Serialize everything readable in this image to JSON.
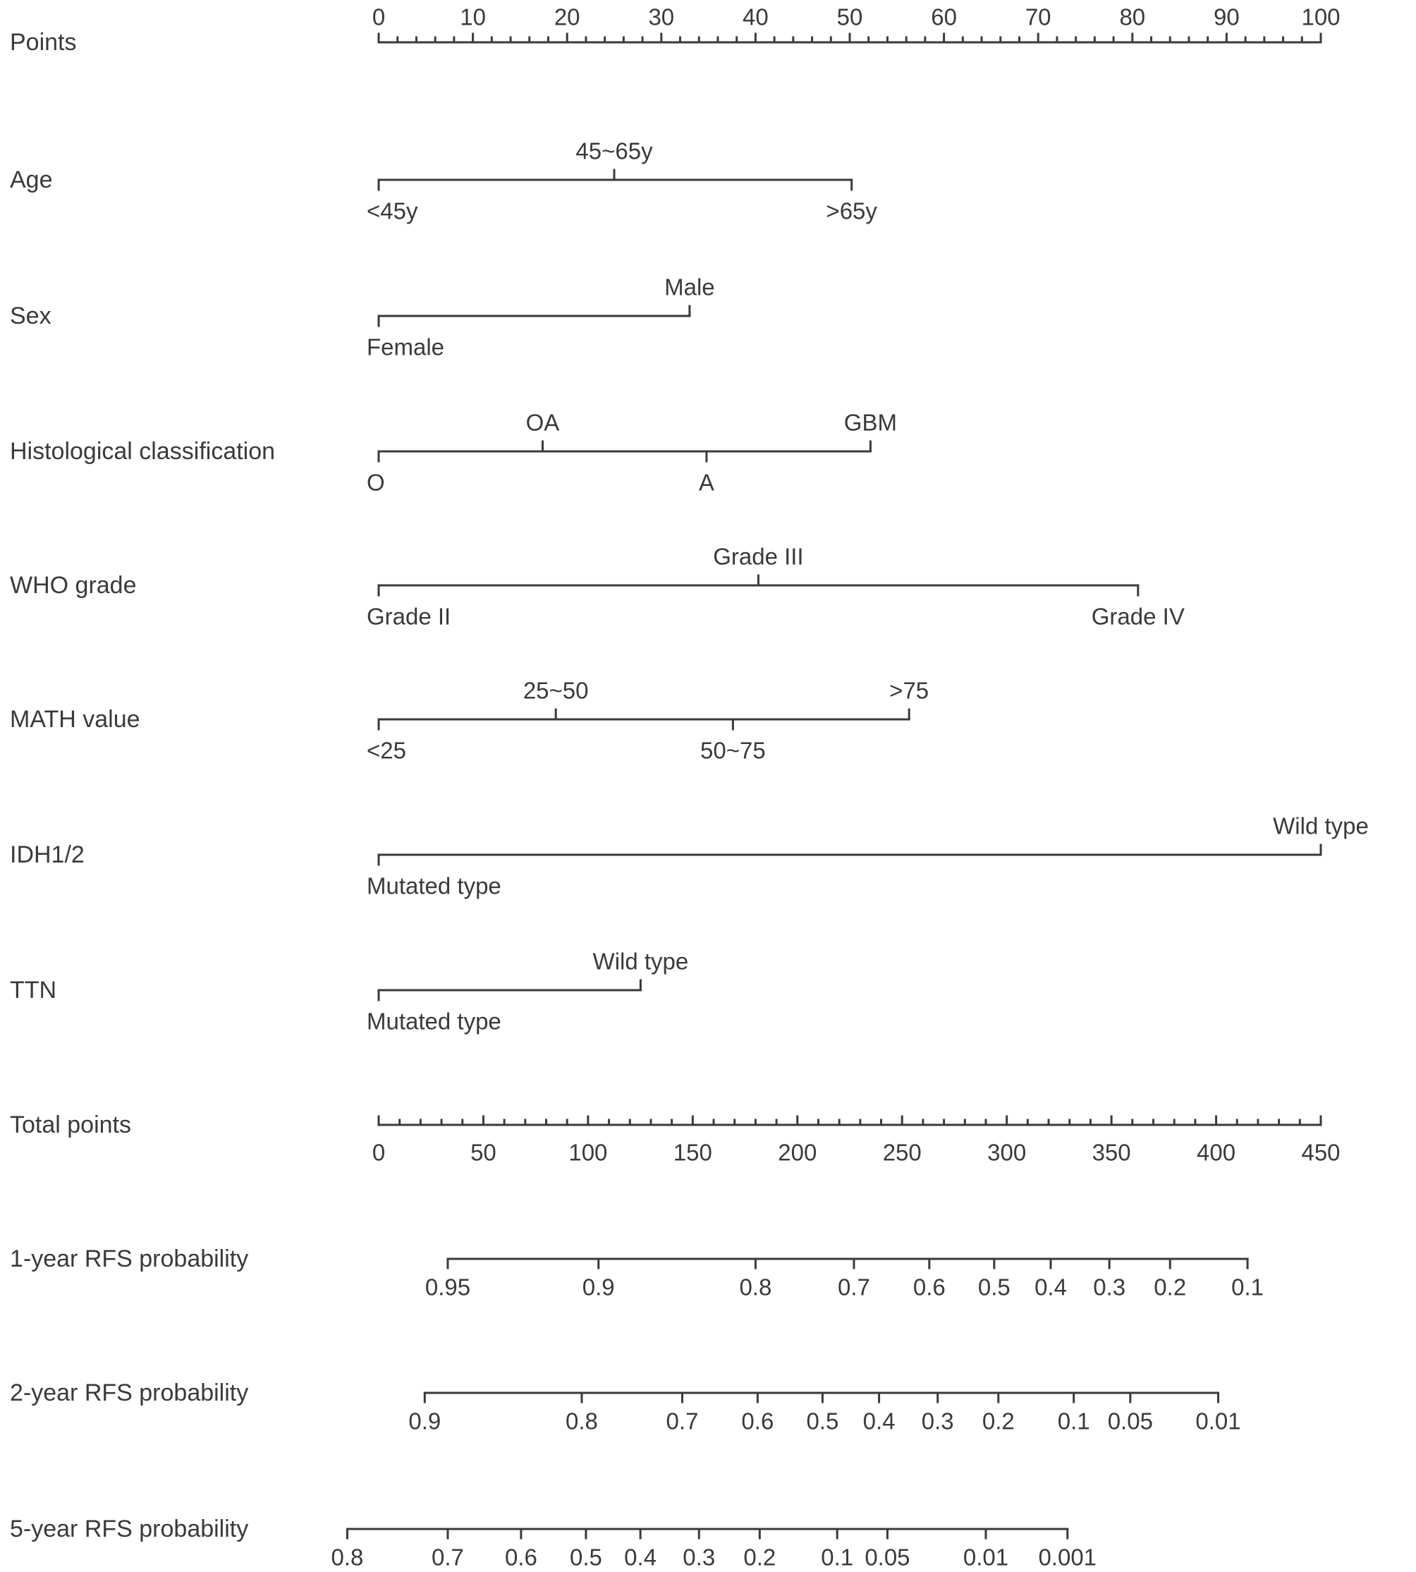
{
  "chart_data": {
    "type": "nomogram",
    "points_scale": {
      "label": "Points",
      "min": 0,
      "max": 100,
      "major_ticks": [
        0,
        10,
        20,
        30,
        40,
        50,
        60,
        70,
        80,
        90,
        100
      ],
      "minor_step": 2
    },
    "variables": [
      {
        "label": "Age",
        "levels": [
          {
            "name": "<45y",
            "points": 0,
            "pos": "below"
          },
          {
            "name": "45~65y",
            "points": 25,
            "pos": "above"
          },
          {
            "name": ">65y",
            "points": 50.2,
            "pos": "below"
          }
        ]
      },
      {
        "label": "Sex",
        "levels": [
          {
            "name": "Female",
            "points": 0,
            "pos": "below"
          },
          {
            "name": "Male",
            "points": 33,
            "pos": "above"
          }
        ]
      },
      {
        "label": "Histological classification",
        "levels": [
          {
            "name": "O",
            "points": 0,
            "pos": "below"
          },
          {
            "name": "OA",
            "points": 17.4,
            "pos": "above"
          },
          {
            "name": "A",
            "points": 34.8,
            "pos": "below"
          },
          {
            "name": "GBM",
            "points": 52.2,
            "pos": "above"
          }
        ]
      },
      {
        "label": "WHO grade",
        "levels": [
          {
            "name": "Grade II",
            "points": 0,
            "pos": "below"
          },
          {
            "name": "Grade III",
            "points": 40.3,
            "pos": "above"
          },
          {
            "name": "Grade IV",
            "points": 80.6,
            "pos": "below"
          }
        ]
      },
      {
        "label": "MATH value",
        "levels": [
          {
            "name": "<25",
            "points": 0,
            "pos": "below"
          },
          {
            "name": "25~50",
            "points": 18.8,
            "pos": "above"
          },
          {
            "name": "50~75",
            "points": 37.6,
            "pos": "below"
          },
          {
            "name": ">75",
            "points": 56.3,
            "pos": "above"
          }
        ]
      },
      {
        "label": "IDH1/2",
        "levels": [
          {
            "name": "Mutated type",
            "points": 0,
            "pos": "below"
          },
          {
            "name": "Wild type",
            "points": 100,
            "pos": "above"
          }
        ]
      },
      {
        "label": "TTN",
        "levels": [
          {
            "name": "Mutated type",
            "points": 0,
            "pos": "below"
          },
          {
            "name": "Wild type",
            "points": 27.8,
            "pos": "above"
          }
        ]
      }
    ],
    "total_points_scale": {
      "label": "Total points",
      "min": 0,
      "max": 450,
      "major_ticks": [
        0,
        50,
        100,
        150,
        200,
        250,
        300,
        350,
        400,
        450
      ],
      "minor_step": 10
    },
    "probability_scales": [
      {
        "label": "1-year RFS probability",
        "ticks": [
          {
            "label": "0.95",
            "total_points": 33
          },
          {
            "label": "0.9",
            "total_points": 105
          },
          {
            "label": "0.8",
            "total_points": 180
          },
          {
            "label": "0.7",
            "total_points": 227
          },
          {
            "label": "0.6",
            "total_points": 263
          },
          {
            "label": "0.5",
            "total_points": 294
          },
          {
            "label": "0.4",
            "total_points": 321
          },
          {
            "label": "0.3",
            "total_points": 349
          },
          {
            "label": "0.2",
            "total_points": 378
          },
          {
            "label": "0.1",
            "total_points": 415
          }
        ]
      },
      {
        "label": "2-year RFS probability",
        "ticks": [
          {
            "label": "0.9",
            "total_points": 22
          },
          {
            "label": "0.8",
            "total_points": 97
          },
          {
            "label": "0.7",
            "total_points": 145
          },
          {
            "label": "0.6",
            "total_points": 181
          },
          {
            "label": "0.5",
            "total_points": 212
          },
          {
            "label": "0.4",
            "total_points": 239
          },
          {
            "label": "0.3",
            "total_points": 267
          },
          {
            "label": "0.2",
            "total_points": 296
          },
          {
            "label": "0.1",
            "total_points": 332
          },
          {
            "label": "0.05",
            "total_points": 359
          },
          {
            "label": "0.01",
            "total_points": 401
          }
        ]
      },
      {
        "label": "5-year RFS probability",
        "ticks": [
          {
            "label": "0.8",
            "total_points": -15
          },
          {
            "label": "0.7",
            "total_points": 33
          },
          {
            "label": "0.6",
            "total_points": 68
          },
          {
            "label": "0.5",
            "total_points": 99
          },
          {
            "label": "0.4",
            "total_points": 125
          },
          {
            "label": "0.3",
            "total_points": 153
          },
          {
            "label": "0.2",
            "total_points": 182
          },
          {
            "label": "0.1",
            "total_points": 219
          },
          {
            "label": "0.05",
            "total_points": 243
          },
          {
            "label": "0.01",
            "total_points": 290
          },
          {
            "label": "0.001",
            "total_points": 329
          }
        ]
      }
    ]
  }
}
